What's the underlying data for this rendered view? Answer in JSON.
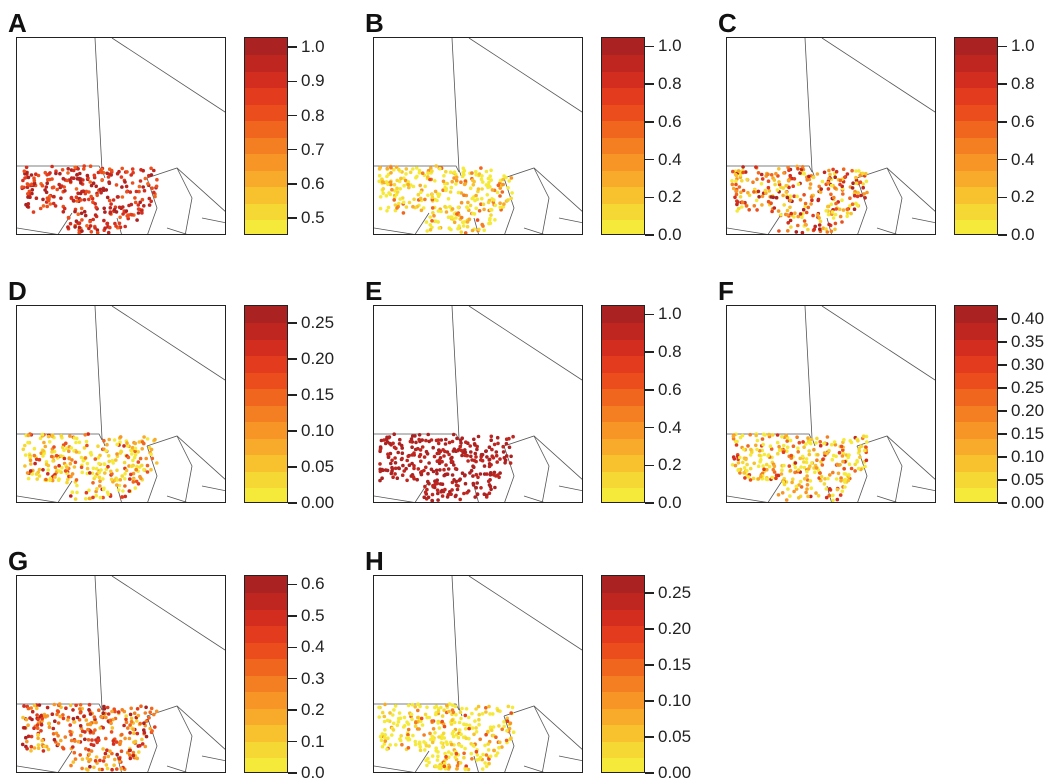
{
  "figure": {
    "panels": [
      {
        "letter": "A",
        "ticks": [
          "0.5",
          "0.6",
          "0.7",
          "0.8",
          "0.9",
          "1.0"
        ],
        "values": [
          0.45,
          1.03
        ],
        "pattern": "high"
      },
      {
        "letter": "B",
        "ticks": [
          "0.0",
          "0.2",
          "0.4",
          "0.6",
          "0.8",
          "1.0"
        ],
        "values": [
          0.0,
          1.05
        ],
        "pattern": "low"
      },
      {
        "letter": "C",
        "ticks": [
          "0.0",
          "0.2",
          "0.4",
          "0.6",
          "0.8",
          "1.0"
        ],
        "values": [
          0.0,
          1.05
        ],
        "pattern": "mixed"
      },
      {
        "letter": "D",
        "ticks": [
          "0.00",
          "0.05",
          "0.10",
          "0.15",
          "0.20",
          "0.25"
        ],
        "values": [
          0.0,
          0.275
        ],
        "pattern": "lowmixed"
      },
      {
        "letter": "E",
        "ticks": [
          "0.0",
          "0.2",
          "0.4",
          "0.6",
          "0.8",
          "1.0"
        ],
        "values": [
          0.0,
          1.05
        ],
        "pattern": "veryhigh"
      },
      {
        "letter": "F",
        "ticks": [
          "0.00",
          "0.05",
          "0.10",
          "0.15",
          "0.20",
          "0.25",
          "0.30",
          "0.35",
          "0.40"
        ],
        "values": [
          0.0,
          0.43
        ],
        "pattern": "lowmixed"
      },
      {
        "letter": "G",
        "ticks": [
          "0.0",
          "0.1",
          "0.2",
          "0.3",
          "0.4",
          "0.5",
          "0.6"
        ],
        "values": [
          0.0,
          0.63
        ],
        "pattern": "mixedhigh"
      },
      {
        "letter": "H",
        "ticks": [
          "0.00",
          "0.05",
          "0.10",
          "0.15",
          "0.20",
          "0.25"
        ],
        "values": [
          0.0,
          0.275
        ],
        "pattern": "verylow"
      }
    ],
    "palette": [
      "#f5ea3a",
      "#f6d834",
      "#f7c22e",
      "#f8ab2a",
      "#f79526",
      "#f47f22",
      "#f0661f",
      "#eb4e1c",
      "#e23b1d",
      "#d22d1f",
      "#bf2620",
      "#aa2221"
    ]
  }
}
